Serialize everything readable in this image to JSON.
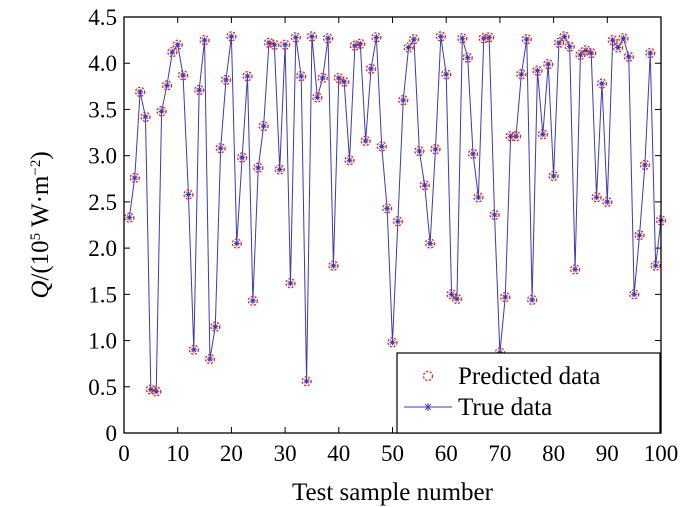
{
  "chart_data": {
    "type": "line",
    "xlabel": "Test sample number",
    "ylabel": {
      "prefix": "Q",
      "open": "/(10",
      "exponent": "5",
      "unit_main": " W·m",
      "unit_exponent": "−2",
      "close": ")"
    },
    "xlim": [
      0,
      100
    ],
    "ylim": [
      0,
      4.5
    ],
    "xticks": [
      "0",
      "10",
      "20",
      "30",
      "40",
      "50",
      "60",
      "70",
      "80",
      "90",
      "100"
    ],
    "yticks": [
      "0",
      "0.5",
      "1.0",
      "1.5",
      "2.0",
      "2.5",
      "3.0",
      "3.5",
      "4.0",
      "4.5"
    ],
    "grid": false,
    "legend_position": "bottom-right",
    "series": [
      {
        "name": "Predicted data",
        "style": "circle",
        "color": "#e8231c",
        "values": [
          2.33,
          2.76,
          3.69,
          3.42,
          0.47,
          0.45,
          3.48,
          3.76,
          4.12,
          4.2,
          3.87,
          2.58,
          0.9,
          3.71,
          4.25,
          0.8,
          1.15,
          3.08,
          3.82,
          4.29,
          2.05,
          2.98,
          3.86,
          1.43,
          2.87,
          3.32,
          4.22,
          4.2,
          2.85,
          4.2,
          1.62,
          4.28,
          3.86,
          0.56,
          4.29,
          3.63,
          3.84,
          4.27,
          1.81,
          3.84,
          3.8,
          2.95,
          4.19,
          4.21,
          3.16,
          3.94,
          4.28,
          3.1,
          2.43,
          0.98,
          2.29,
          3.6,
          4.17,
          4.26,
          3.05,
          2.68,
          2.05,
          3.07,
          4.29,
          3.88,
          1.5,
          1.45,
          4.27,
          4.06,
          3.02,
          2.55,
          4.27,
          4.28,
          2.36,
          0.87,
          1.47,
          3.21,
          3.21,
          3.88,
          4.26,
          1.44,
          3.92,
          3.23,
          3.99,
          2.78,
          4.22,
          4.29,
          4.18,
          1.77,
          4.09,
          4.14,
          4.11,
          2.55,
          3.78,
          2.5,
          4.25,
          4.17,
          4.27,
          4.07,
          1.5,
          2.14,
          2.9,
          4.11,
          1.81,
          2.3
        ]
      },
      {
        "name": "True data",
        "style": "line-star",
        "color": "#3b3bb0",
        "values": [
          2.33,
          2.76,
          3.69,
          3.42,
          0.47,
          0.45,
          3.48,
          3.76,
          4.12,
          4.2,
          3.87,
          2.58,
          0.9,
          3.71,
          4.25,
          0.8,
          1.15,
          3.08,
          3.82,
          4.29,
          2.05,
          2.98,
          3.86,
          1.43,
          2.87,
          3.32,
          4.22,
          4.2,
          2.85,
          4.2,
          1.62,
          4.28,
          3.86,
          0.56,
          4.29,
          3.63,
          3.84,
          4.27,
          1.81,
          3.84,
          3.8,
          2.95,
          4.19,
          4.21,
          3.16,
          3.94,
          4.28,
          3.1,
          2.43,
          0.98,
          2.29,
          3.6,
          4.17,
          4.26,
          3.05,
          2.68,
          2.05,
          3.07,
          4.29,
          3.88,
          1.5,
          1.45,
          4.27,
          4.06,
          3.02,
          2.55,
          4.27,
          4.28,
          2.36,
          0.87,
          1.47,
          3.21,
          3.21,
          3.88,
          4.26,
          1.44,
          3.92,
          3.23,
          3.99,
          2.78,
          4.22,
          4.29,
          4.18,
          1.77,
          4.09,
          4.14,
          4.11,
          2.55,
          3.78,
          2.5,
          4.25,
          4.17,
          4.27,
          4.07,
          1.5,
          2.14,
          2.9,
          4.11,
          1.81,
          2.3
        ]
      }
    ]
  }
}
